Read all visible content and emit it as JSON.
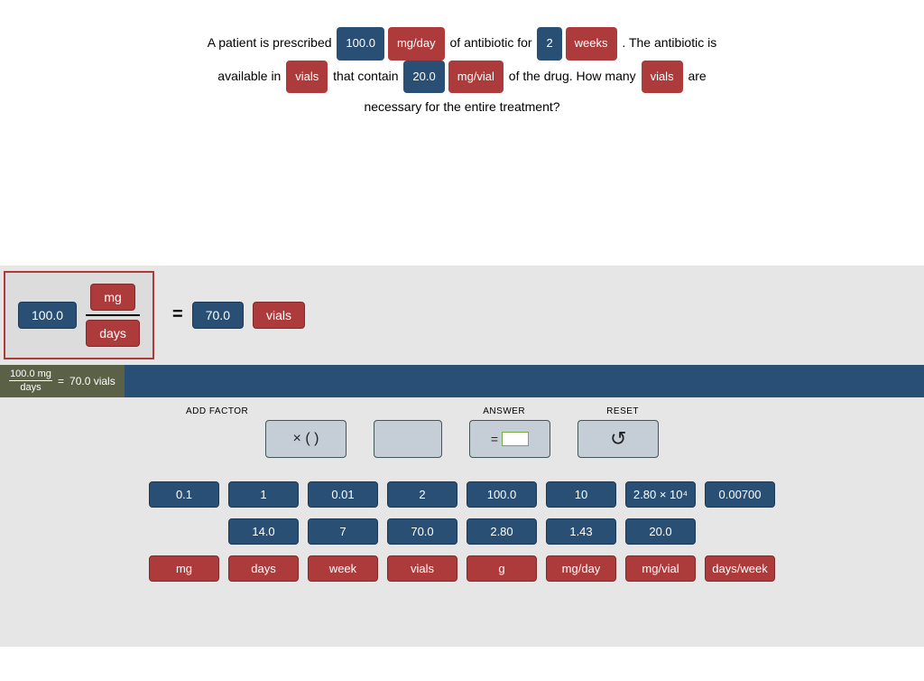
{
  "problem": {
    "parts": [
      {
        "t": "text",
        "v": "A patient is prescribed "
      },
      {
        "t": "blue",
        "v": "100.0"
      },
      {
        "t": "red",
        "v": "mg/day"
      },
      {
        "t": "text",
        "v": " of antibiotic for "
      },
      {
        "t": "blue",
        "v": "2"
      },
      {
        "t": "red",
        "v": "weeks"
      },
      {
        "t": "text",
        "v": " . The antibiotic is "
      },
      {
        "t": "br"
      },
      {
        "t": "text",
        "v": "available in "
      },
      {
        "t": "red",
        "v": "vials"
      },
      {
        "t": "text",
        "v": " that contain "
      },
      {
        "t": "blue",
        "v": "20.0"
      },
      {
        "t": "red",
        "v": "mg/vial"
      },
      {
        "t": "text",
        "v": " of the drug. How many "
      },
      {
        "t": "red",
        "v": "vials"
      },
      {
        "t": "text",
        "v": " are "
      },
      {
        "t": "br"
      },
      {
        "t": "text",
        "v": "necessary for the entire treatment?"
      }
    ]
  },
  "equation": {
    "factor": {
      "value": "100.0",
      "top_unit": "mg",
      "bottom_unit": "days"
    },
    "equals": "=",
    "result_value": "70.0",
    "result_unit": "vials"
  },
  "summary": {
    "left_top": "100.0 mg",
    "left_bottom": "days",
    "eq": "=",
    "right": "70.0 vials"
  },
  "controls": {
    "labels": {
      "add_factor": "ADD FACTOR",
      "answer": "ANSWER",
      "reset": "RESET"
    },
    "add_factor_display": "× (   )",
    "answer_prefix": "="
  },
  "number_chips_row1": [
    "0.1",
    "1",
    "0.01",
    "2",
    "100.0",
    "10",
    "2.80 × 10⁴",
    "0.00700"
  ],
  "number_chips_row2": [
    "14.0",
    "7",
    "70.0",
    "2.80",
    "1.43",
    "20.0"
  ],
  "unit_chips": [
    "mg",
    "days",
    "week",
    "vials",
    "g",
    "mg/day",
    "mg/vial",
    "days/week"
  ],
  "colors": {
    "blue": "#294f75",
    "red": "#ae3b3b",
    "panel_bg": "#e6e6e6",
    "summary_left_bg": "#5a6147",
    "action_bg": "#c5cdd7"
  }
}
